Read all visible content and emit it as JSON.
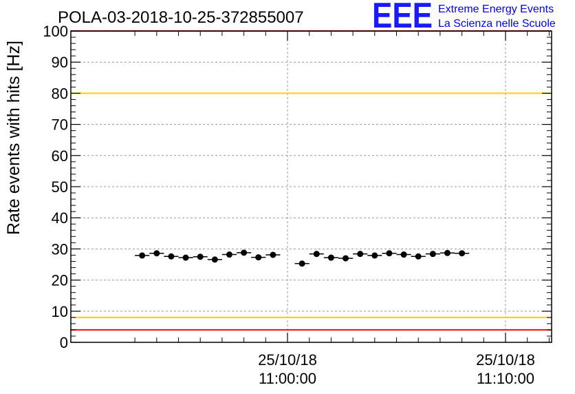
{
  "chart_data": {
    "type": "scatter",
    "title": "POLA-03-2018-10-25-372855007",
    "ylabel": "Rate events with hits [Hz]",
    "xlabel": "",
    "ylim": [
      0,
      100
    ],
    "yticks": [
      0,
      10,
      20,
      30,
      40,
      50,
      60,
      70,
      80,
      90,
      100
    ],
    "ytick_labels": [
      "0",
      "10",
      "20",
      "30",
      "40",
      "50",
      "60",
      "70",
      "80",
      "90",
      "100"
    ],
    "xticks": [
      {
        "date": "25/10/18",
        "time": "11:00:00"
      },
      {
        "date": "25/10/18",
        "time": "11:10:00"
      }
    ],
    "grid": true,
    "reference_lines": [
      {
        "y": 100,
        "color": "#ff0000"
      },
      {
        "y": 80,
        "color": "#ffcc00"
      },
      {
        "y": 8,
        "color": "#ffcc00"
      },
      {
        "y": 4,
        "color": "#ff0000"
      }
    ],
    "series": [
      {
        "marker_color": "#000000",
        "points": [
          {
            "time": "10:53:20",
            "y": 27.9
          },
          {
            "time": "10:54:00",
            "y": 28.6
          },
          {
            "time": "10:54:40",
            "y": 27.6
          },
          {
            "time": "10:55:20",
            "y": 27.2
          },
          {
            "time": "10:56:00",
            "y": 27.5
          },
          {
            "time": "10:56:40",
            "y": 26.6
          },
          {
            "time": "10:57:20",
            "y": 28.2
          },
          {
            "time": "10:58:00",
            "y": 28.8
          },
          {
            "time": "10:58:40",
            "y": 27.3
          },
          {
            "time": "10:59:20",
            "y": 28.1
          },
          {
            "time": "11:00:40",
            "y": 25.3
          },
          {
            "time": "11:01:20",
            "y": 28.4
          },
          {
            "time": "11:02:00",
            "y": 27.2
          },
          {
            "time": "11:02:40",
            "y": 27.0
          },
          {
            "time": "11:03:20",
            "y": 28.4
          },
          {
            "time": "11:04:00",
            "y": 27.9
          },
          {
            "time": "11:04:40",
            "y": 28.6
          },
          {
            "time": "11:05:20",
            "y": 28.2
          },
          {
            "time": "11:06:00",
            "y": 27.6
          },
          {
            "time": "11:06:40",
            "y": 28.4
          },
          {
            "time": "11:07:20",
            "y": 28.7
          },
          {
            "time": "11:08:00",
            "y": 28.6
          }
        ]
      }
    ]
  },
  "logo": {
    "letters": "EEE",
    "line1": "Extreme Energy Events",
    "line2": "La Scienza nelle Scuole"
  }
}
